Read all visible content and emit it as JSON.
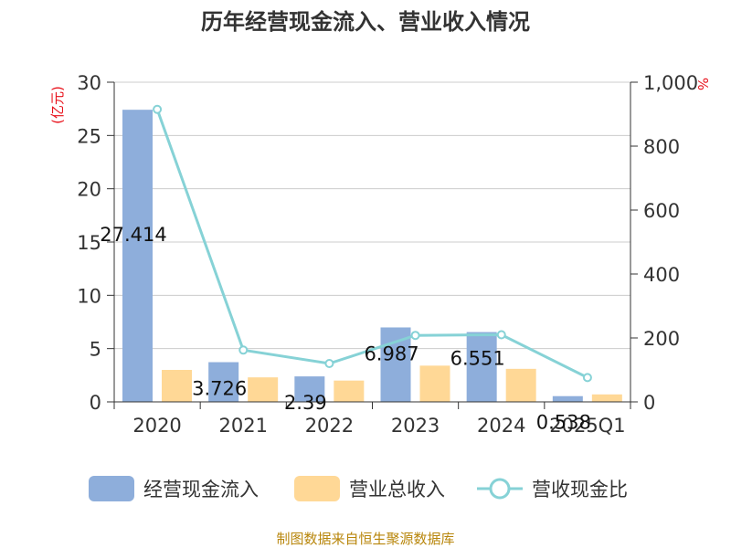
{
  "chart_data": {
    "type": "bar",
    "title": "历年经营现金流入、营业收入情况",
    "categories": [
      "2020",
      "2021",
      "2022",
      "2023",
      "2024",
      "2025Q1"
    ],
    "series": [
      {
        "name": "经营现金流入",
        "type": "bar",
        "axis": "left",
        "color": "#8eaedb",
        "values": [
          27.414,
          3.726,
          2.39,
          6.987,
          6.551,
          0.538
        ],
        "labels": [
          "27.414",
          "3.726",
          "2.39",
          "6.987",
          "6.551",
          "0.538"
        ]
      },
      {
        "name": "营业总收入",
        "type": "bar",
        "axis": "left",
        "color": "#ffd896",
        "values": [
          3.0,
          2.3,
          2.0,
          3.4,
          3.1,
          0.7
        ]
      },
      {
        "name": "营收现金比",
        "type": "line",
        "axis": "right",
        "color": "#86d2d6",
        "values": [
          915,
          162,
          120,
          208,
          210,
          76
        ]
      }
    ],
    "y_left": {
      "unit": "(亿元)",
      "min": 0,
      "max": 30,
      "ticks": [
        "0",
        "5",
        "10",
        "15",
        "20",
        "25",
        "30"
      ]
    },
    "y_right": {
      "unit": "%",
      "min": 0,
      "max": 1000,
      "ticks": [
        "0",
        "200",
        "400",
        "600",
        "800",
        "1,000"
      ]
    },
    "grid": true,
    "legend_position": "bottom"
  },
  "source": "制图数据来自恒生聚源数据库"
}
